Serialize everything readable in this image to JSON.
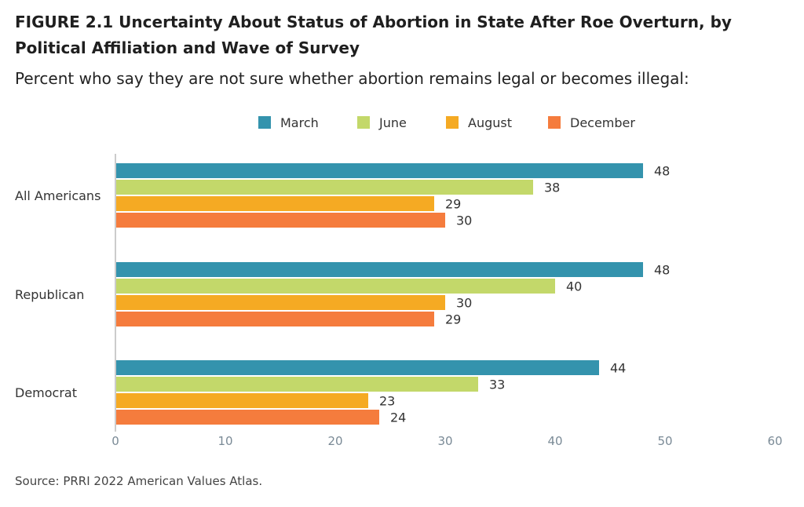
{
  "title": "FIGURE 2.1 Uncertainty About Status of Abortion in State After Roe Overturn, by Political Affiliation and Wave of Survey",
  "subtitle": "Percent who say they are not sure whether abortion remains legal or becomes illegal:",
  "source": "Source: PRRI 2022 American Values Atlas.",
  "colors": {
    "March": "#3493ad",
    "June": "#c3d86a",
    "August": "#f5aa23",
    "December": "#f57c3d"
  },
  "chart_data": {
    "type": "bar",
    "orientation": "horizontal",
    "title": "FIGURE 2.1 Uncertainty About Status of Abortion in State After Roe Overturn, by Political Affiliation and Wave of Survey",
    "subtitle": "Percent who say they are not sure whether abortion remains legal or becomes illegal:",
    "categories": [
      "All Americans",
      "Republican",
      "Democrat"
    ],
    "series": [
      {
        "name": "March",
        "values": [
          48,
          48,
          44
        ]
      },
      {
        "name": "June",
        "values": [
          38,
          40,
          33
        ]
      },
      {
        "name": "August",
        "values": [
          29,
          30,
          23
        ]
      },
      {
        "name": "December",
        "values": [
          30,
          29,
          24
        ]
      }
    ],
    "xlim": [
      0,
      60
    ],
    "xticks": [
      0,
      10,
      20,
      30,
      40,
      50,
      60
    ],
    "grid": false,
    "legend_position": "top",
    "data_labels": true
  }
}
